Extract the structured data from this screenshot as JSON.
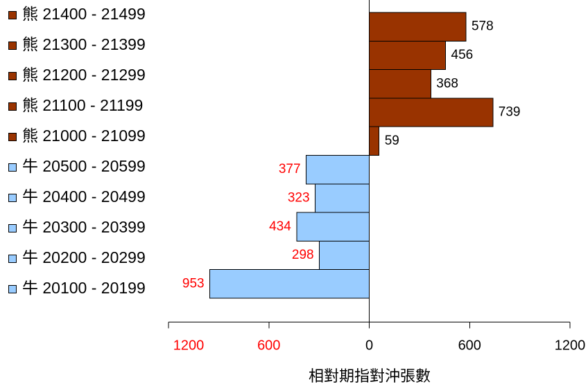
{
  "chart_data": {
    "type": "bar",
    "orientation": "horizontal",
    "xlabel": "相對期指對沖張數",
    "xlim": {
      "left": 1200,
      "right": 1200
    },
    "grid": false,
    "legend_placement": "left",
    "bars_right": {
      "color": "#993300",
      "label_color": "#000000",
      "categories": [
        "熊 21400 - 21499",
        "熊 21300 - 21399",
        "熊 21200 - 21299",
        "熊 21100 - 21199",
        "熊 21000 - 21099"
      ],
      "values": [
        578,
        456,
        368,
        739,
        59
      ]
    },
    "bars_left": {
      "color": "#99CCFF",
      "label_color": "#FF0000",
      "categories": [
        "牛 20500 - 20599",
        "牛 20400 - 20499",
        "牛 20300 - 20399",
        "牛 20200 - 20299",
        "牛 20100 - 20199"
      ],
      "values": [
        377,
        323,
        434,
        298,
        953
      ]
    },
    "xticks": {
      "left": {
        "color": "#FF0000",
        "ticks": [
          {
            "value": 1200,
            "label": "1200"
          },
          {
            "value": 600,
            "label": "600"
          }
        ]
      },
      "center": {
        "color": "#000000",
        "ticks": [
          {
            "value": 0,
            "label": "0"
          }
        ]
      },
      "right": {
        "color": "#000000",
        "ticks": [
          {
            "value": 600,
            "label": "600"
          },
          {
            "value": 1200,
            "label": "1200"
          }
        ]
      }
    }
  }
}
